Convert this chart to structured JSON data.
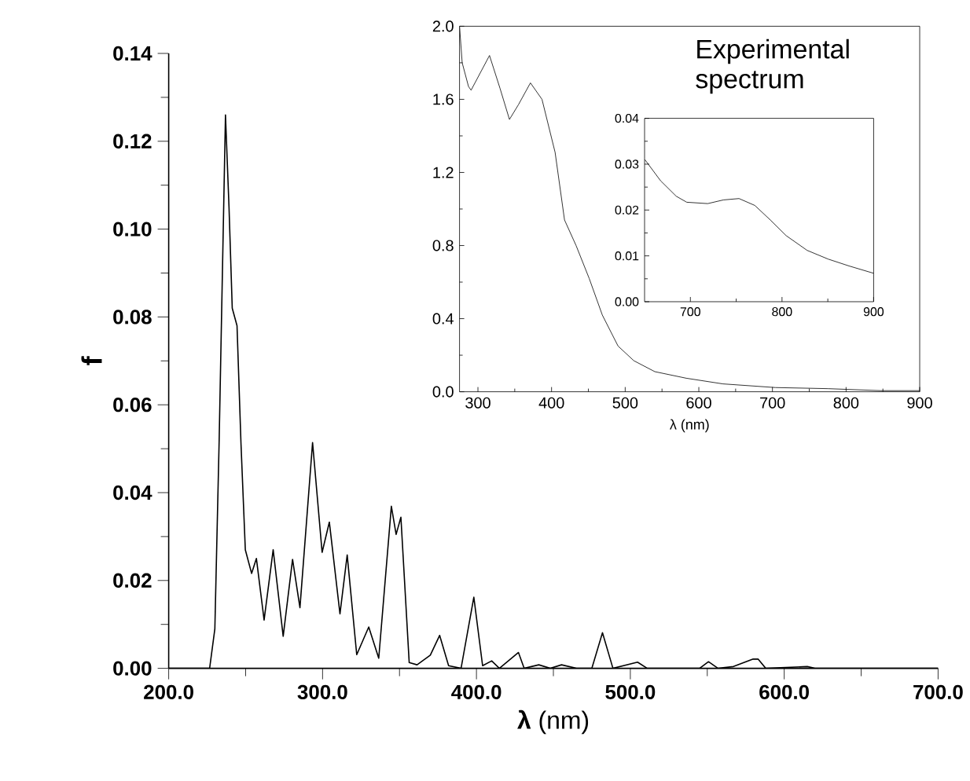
{
  "chart_data": [
    {
      "type": "line",
      "xlabel": "**λ** (nm)",
      "ylabel": "f",
      "marker": "none",
      "xlim": [
        200,
        700
      ],
      "ylim": [
        0,
        0.14
      ],
      "xticks": [
        {
          "value": 200,
          "label": "200.0"
        },
        {
          "value": 300,
          "label": "300.0"
        },
        {
          "value": 400,
          "label": "400.0"
        },
        {
          "value": 500,
          "label": "500.0"
        },
        {
          "value": 600,
          "label": "600.0"
        },
        {
          "value": 700,
          "label": "700.0"
        }
      ],
      "yticks": [
        {
          "value": 0,
          "label": "0.00"
        },
        {
          "value": 0.02,
          "label": "0.02"
        },
        {
          "value": 0.04,
          "label": "0.04"
        },
        {
          "value": 0.06,
          "label": "0.06"
        },
        {
          "value": 0.08,
          "label": "0.08"
        },
        {
          "value": 0.1,
          "label": "0.10"
        },
        {
          "value": 0.12,
          "label": "0.12"
        },
        {
          "value": 0.14,
          "label": "0.14"
        }
      ],
      "series": [
        {
          "color": "#000000",
          "x": [
            200,
            226.6,
            230,
            232.8,
            236.9,
            239.2,
            241.3,
            244.4,
            247,
            249.8,
            253.9,
            257,
            262,
            267.9,
            274.4,
            280.5,
            285.3,
            293.5,
            299.7,
            304.4,
            311.3,
            316,
            322.2,
            330,
            336.5,
            344.7,
            347.8,
            350.9,
            356.3,
            361.4,
            370,
            376.1,
            381.9,
            390,
            398.3,
            404,
            409.9,
            414.9,
            427.3,
            431,
            440.5,
            448,
            455.3,
            465,
            475,
            481.9,
            488.7,
            504.7,
            511,
            545,
            550.8,
            557,
            567,
            579.8,
            583,
            588,
            615,
            620,
            700
          ],
          "values": [
            0,
            0,
            0.009,
            0.052,
            0.126,
            0.105,
            0.082,
            0.078,
            0.051,
            0.027,
            0.0216,
            0.025,
            0.011,
            0.027,
            0.0073,
            0.0248,
            0.0138,
            0.0514,
            0.0264,
            0.0333,
            0.0124,
            0.0258,
            0.0031,
            0.0094,
            0.0023,
            0.0369,
            0.0305,
            0.0344,
            0.0013,
            0.0008,
            0.003,
            0.0075,
            0.0006,
            0,
            0.0162,
            0.0006,
            0.0017,
            0,
            0.0036,
            0,
            0.0008,
            0,
            0.0008,
            0,
            0,
            0.0081,
            0,
            0.0014,
            0,
            0,
            0.0015,
            0,
            0.0004,
            0.0021,
            0.0021,
            0,
            0.0004,
            0,
            0
          ]
        }
      ]
    },
    {
      "type": "line",
      "xlabel": "λ (nm)",
      "marker": "none",
      "annotations": [
        "Experimental spectrum"
      ],
      "xlim": [
        275,
        900
      ],
      "ylim": [
        0,
        2.0
      ],
      "xticks": [
        300,
        400,
        500,
        600,
        700,
        800,
        900
      ],
      "yticks": [
        {
          "value": 0,
          "label": "0.0"
        },
        {
          "value": 0.4,
          "label": "0.4"
        },
        {
          "value": 0.8,
          "label": "0.8"
        },
        {
          "value": 1.2,
          "label": "1.2"
        },
        {
          "value": 1.6,
          "label": "1.6"
        },
        {
          "value": 2.0,
          "label": "2.0"
        }
      ],
      "series": [
        {
          "color": "#000000",
          "x": [
            275,
            278.6,
            287.2,
            290.7,
            315.7,
            330,
            342.8,
            354.9,
            371.3,
            387,
            404.8,
            417.6,
            433.3,
            451.1,
            468.9,
            490.3,
            511.7,
            540.2,
            583,
            632.9,
            704,
            775.4,
            846.7,
            900
          ],
          "values": [
            2.0,
            1.8,
            1.67,
            1.65,
            1.84,
            1.66,
            1.49,
            1.57,
            1.69,
            1.6,
            1.31,
            0.94,
            0.8,
            0.62,
            0.42,
            0.25,
            0.17,
            0.11,
            0.074,
            0.043,
            0.023,
            0.017,
            0.006,
            0.006
          ]
        }
      ]
    },
    {
      "type": "line",
      "marker": "none",
      "xlim": [
        650,
        900
      ],
      "ylim": [
        0,
        0.04
      ],
      "xticks": [
        700,
        800,
        900
      ],
      "yticks": [
        {
          "value": 0,
          "label": "0.00"
        },
        {
          "value": 0.01,
          "label": "0.01"
        },
        {
          "value": 0.02,
          "label": "0.02"
        },
        {
          "value": 0.03,
          "label": "0.03"
        },
        {
          "value": 0.04,
          "label": "0.04"
        }
      ],
      "series": [
        {
          "color": "#000000",
          "x": [
            650.3,
            667.4,
            684.6,
            696,
            718.9,
            736,
            753.1,
            770.3,
            787.4,
            804.6,
            827.4,
            850.3,
            873.1,
            900
          ],
          "values": [
            0.031,
            0.0264,
            0.023,
            0.0217,
            0.0214,
            0.0222,
            0.0225,
            0.021,
            0.0178,
            0.0144,
            0.0112,
            0.0093,
            0.0078,
            0.0062
          ]
        }
      ]
    }
  ]
}
